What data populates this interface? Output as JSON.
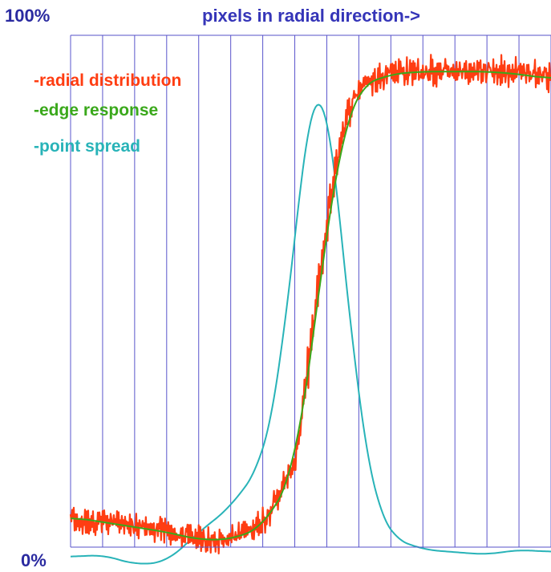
{
  "chart_data": {
    "type": "line",
    "title": "pixels in radial direction->",
    "y_top_label": "100%",
    "y_bottom_label": "0%",
    "ylim": [
      0,
      100
    ],
    "xlim": [
      0,
      15
    ],
    "grid": {
      "vertical": true,
      "horizontal": false,
      "count": 15
    },
    "legend": {
      "placement": "top-left"
    },
    "series": [
      {
        "name": "-radial distribution",
        "color": "#ff3d12",
        "style": "noisy",
        "x": [
          0,
          1,
          2,
          3,
          4,
          5,
          6,
          7,
          7.5,
          8,
          8.5,
          9,
          10,
          11,
          12,
          13,
          14,
          15
        ],
        "y": [
          5.5,
          5,
          4.5,
          3,
          1.5,
          1.5,
          5,
          16,
          40,
          65,
          84,
          92,
          95,
          95,
          95,
          95,
          95,
          94
        ]
      },
      {
        "name": "-edge response",
        "color": "#3aa81b",
        "x": [
          0,
          1,
          2,
          3,
          4,
          5,
          6,
          7,
          7.5,
          8,
          8.5,
          9,
          10,
          11,
          12,
          13,
          14,
          15
        ],
        "y": [
          6,
          5,
          4,
          3,
          1.5,
          1.5,
          4,
          15,
          38,
          64,
          83,
          92,
          94.5,
          95,
          95,
          95,
          94.5,
          93.5
        ]
      },
      {
        "name": "-point spread",
        "color": "#28b3b8",
        "x": [
          0,
          1,
          2,
          3,
          4,
          5,
          6,
          6.5,
          7,
          7.5,
          7.75,
          8,
          8.5,
          9,
          9.5,
          10,
          11,
          12,
          13,
          14,
          15
        ],
        "y": [
          -2,
          -1.5,
          -3.5,
          -3,
          3,
          8,
          17,
          32,
          62,
          91,
          98,
          91,
          60,
          27,
          9,
          2,
          -0.5,
          -1,
          -1.5,
          -0.5,
          -1
        ]
      }
    ]
  }
}
